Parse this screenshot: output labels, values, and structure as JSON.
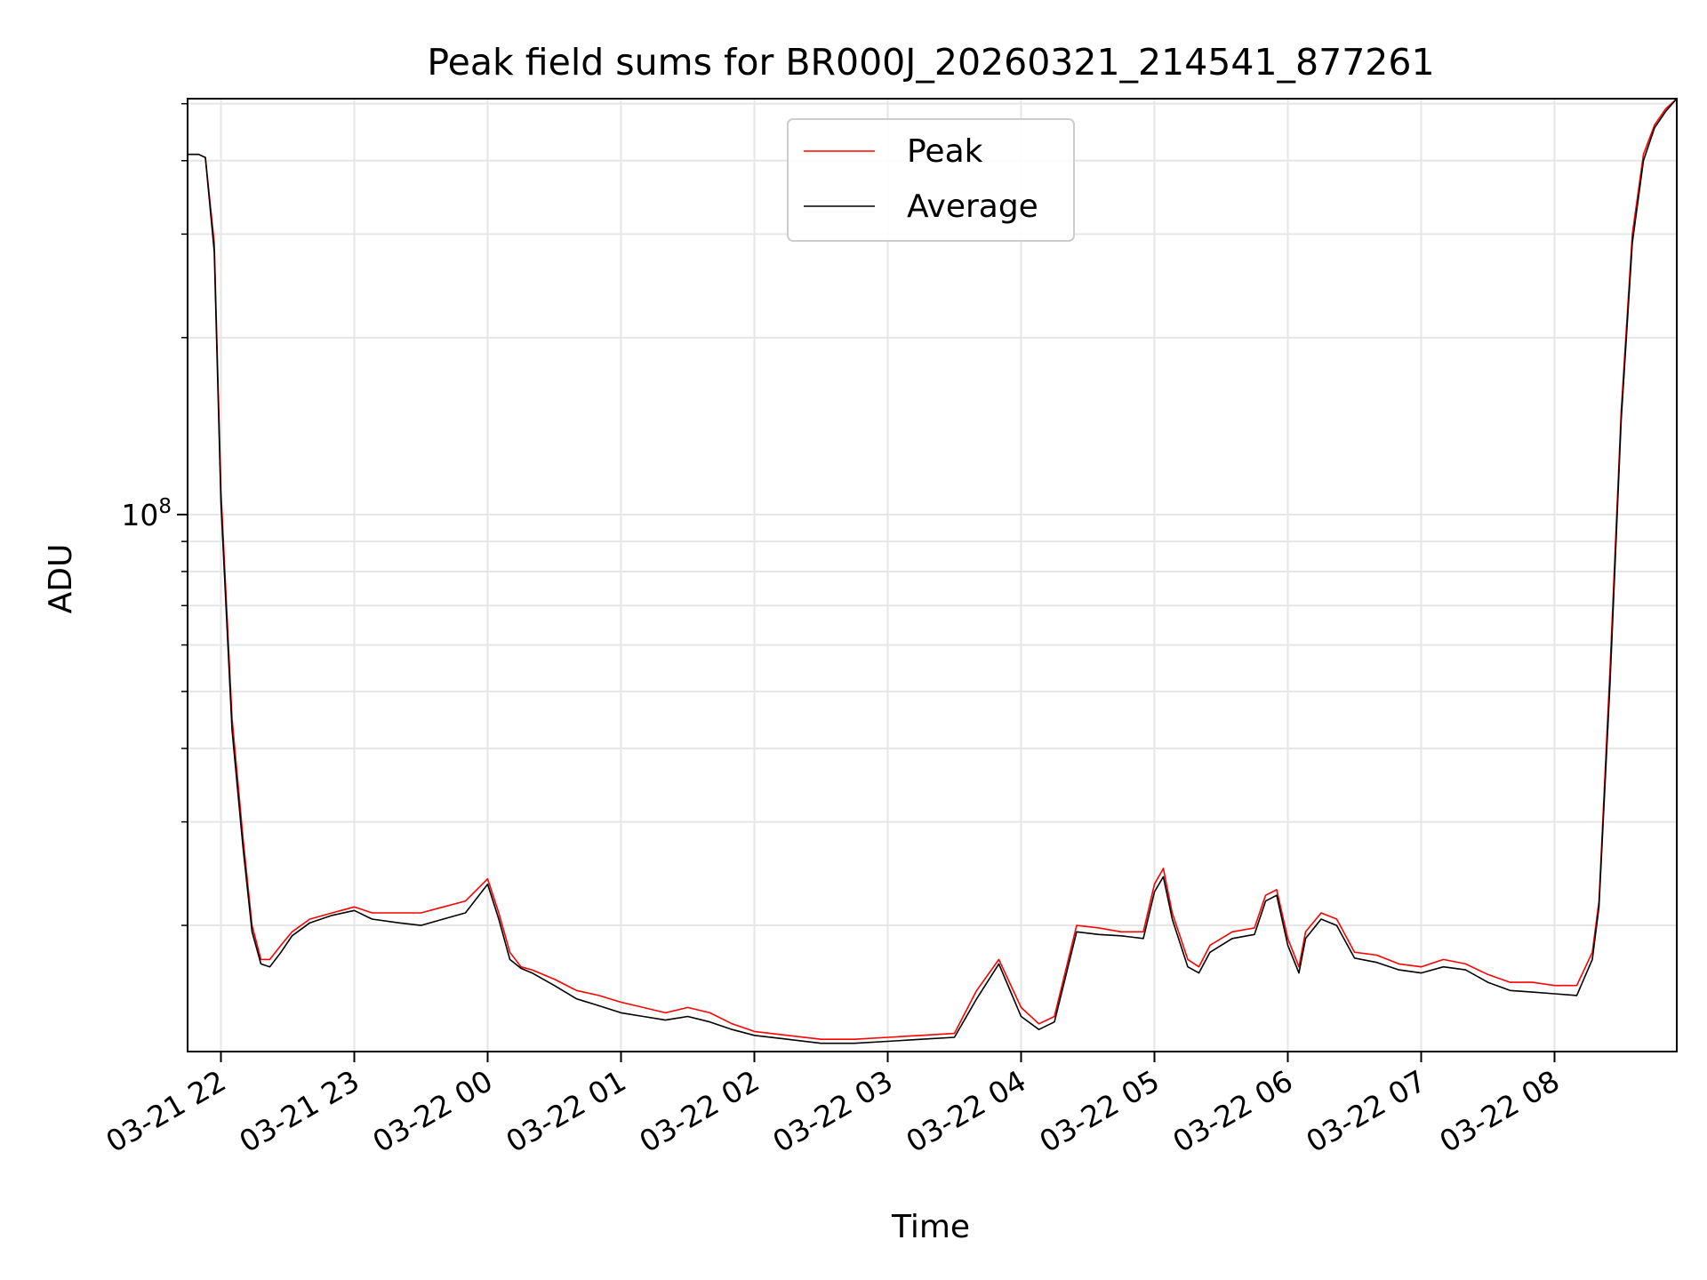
{
  "chart_data": {
    "type": "line",
    "title": "Peak field sums for BR000J_20260321_214541_877261",
    "xlabel": "Time",
    "ylabel": "ADU",
    "y_scale": "log",
    "xlim": [
      "2026-03-21 21:45",
      "2026-03-22 08:55"
    ],
    "ylim": [
      12200000,
      510000000
    ],
    "x_ticks": [
      "03-21 22",
      "03-21 23",
      "03-22 00",
      "03-22 01",
      "03-22 02",
      "03-22 03",
      "03-22 04",
      "03-22 05",
      "03-22 06",
      "03-22 07",
      "03-22 08"
    ],
    "y_ticks": [
      {
        "value": 100000000,
        "base": "10",
        "exp": "8"
      }
    ],
    "grid": true,
    "legend_position": "top-center",
    "series": [
      {
        "name": "Peak",
        "color": "#ff0000",
        "x": [
          "2026-03-21 21:45",
          "2026-03-21 21:50",
          "2026-03-21 21:53",
          "2026-03-21 21:57",
          "2026-03-21 22:00",
          "2026-03-21 22:05",
          "2026-03-21 22:10",
          "2026-03-21 22:14",
          "2026-03-21 22:18",
          "2026-03-21 22:22",
          "2026-03-21 22:27",
          "2026-03-21 22:32",
          "2026-03-21 22:40",
          "2026-03-21 22:50",
          "2026-03-21 23:00",
          "2026-03-21 23:08",
          "2026-03-21 23:20",
          "2026-03-21 23:30",
          "2026-03-21 23:40",
          "2026-03-21 23:50",
          "2026-03-22 00:00",
          "2026-03-22 00:05",
          "2026-03-22 00:10",
          "2026-03-22 00:15",
          "2026-03-22 00:20",
          "2026-03-22 00:30",
          "2026-03-22 00:40",
          "2026-03-22 00:50",
          "2026-03-22 01:00",
          "2026-03-22 01:10",
          "2026-03-22 01:20",
          "2026-03-22 01:30",
          "2026-03-22 01:40",
          "2026-03-22 01:50",
          "2026-03-22 02:00",
          "2026-03-22 02:15",
          "2026-03-22 02:30",
          "2026-03-22 02:45",
          "2026-03-22 03:00",
          "2026-03-22 03:15",
          "2026-03-22 03:30",
          "2026-03-22 03:40",
          "2026-03-22 03:50",
          "2026-03-22 04:00",
          "2026-03-22 04:08",
          "2026-03-22 04:15",
          "2026-03-22 04:25",
          "2026-03-22 04:35",
          "2026-03-22 04:45",
          "2026-03-22 04:55",
          "2026-03-22 05:00",
          "2026-03-22 05:04",
          "2026-03-22 05:08",
          "2026-03-22 05:15",
          "2026-03-22 05:20",
          "2026-03-22 05:25",
          "2026-03-22 05:35",
          "2026-03-22 05:45",
          "2026-03-22 05:50",
          "2026-03-22 05:55",
          "2026-03-22 06:00",
          "2026-03-22 06:05",
          "2026-03-22 06:08",
          "2026-03-22 06:15",
          "2026-03-22 06:22",
          "2026-03-22 06:30",
          "2026-03-22 06:40",
          "2026-03-22 06:50",
          "2026-03-22 07:00",
          "2026-03-22 07:10",
          "2026-03-22 07:20",
          "2026-03-22 07:30",
          "2026-03-22 07:40",
          "2026-03-22 07:50",
          "2026-03-22 08:00",
          "2026-03-22 08:10",
          "2026-03-22 08:17",
          "2026-03-22 08:20",
          "2026-03-22 08:25",
          "2026-03-22 08:30",
          "2026-03-22 08:35",
          "2026-03-22 08:40",
          "2026-03-22 08:45",
          "2026-03-22 08:50",
          "2026-03-22 08:55"
        ],
        "values": [
          410000000,
          410000000,
          405000000,
          290000000,
          110000000,
          45000000,
          28000000,
          20000000,
          17500000,
          17500000,
          18500000,
          19500000,
          20500000,
          21000000,
          21500000,
          21000000,
          21000000,
          21000000,
          21500000,
          22000000,
          24000000,
          21000000,
          18000000,
          17000000,
          16800000,
          16200000,
          15500000,
          15200000,
          14800000,
          14500000,
          14200000,
          14500000,
          14200000,
          13600000,
          13200000,
          13000000,
          12800000,
          12800000,
          12900000,
          13000000,
          13100000,
          15500000,
          17500000,
          14500000,
          13600000,
          14000000,
          20000000,
          19800000,
          19500000,
          19500000,
          23500000,
          25000000,
          21000000,
          17500000,
          17000000,
          18500000,
          19500000,
          19800000,
          22500000,
          23000000,
          19000000,
          17000000,
          19500000,
          21000000,
          20500000,
          18000000,
          17800000,
          17200000,
          17000000,
          17500000,
          17200000,
          16500000,
          16000000,
          16000000,
          15800000,
          15800000,
          18000000,
          22000000,
          55000000,
          150000000,
          300000000,
          410000000,
          460000000,
          490000000,
          510000000
        ]
      },
      {
        "name": "Average",
        "color": "#000000",
        "x": [
          "2026-03-21 21:45",
          "2026-03-21 21:50",
          "2026-03-21 21:53",
          "2026-03-21 21:57",
          "2026-03-21 22:00",
          "2026-03-21 22:05",
          "2026-03-21 22:10",
          "2026-03-21 22:14",
          "2026-03-21 22:18",
          "2026-03-21 22:22",
          "2026-03-21 22:27",
          "2026-03-21 22:32",
          "2026-03-21 22:40",
          "2026-03-21 22:50",
          "2026-03-21 23:00",
          "2026-03-21 23:08",
          "2026-03-21 23:20",
          "2026-03-21 23:30",
          "2026-03-21 23:40",
          "2026-03-21 23:50",
          "2026-03-22 00:00",
          "2026-03-22 00:05",
          "2026-03-22 00:10",
          "2026-03-22 00:15",
          "2026-03-22 00:20",
          "2026-03-22 00:30",
          "2026-03-22 00:40",
          "2026-03-22 00:50",
          "2026-03-22 01:00",
          "2026-03-22 01:10",
          "2026-03-22 01:20",
          "2026-03-22 01:30",
          "2026-03-22 01:40",
          "2026-03-22 01:50",
          "2026-03-22 02:00",
          "2026-03-22 02:15",
          "2026-03-22 02:30",
          "2026-03-22 02:45",
          "2026-03-22 03:00",
          "2026-03-22 03:15",
          "2026-03-22 03:30",
          "2026-03-22 03:40",
          "2026-03-22 03:50",
          "2026-03-22 04:00",
          "2026-03-22 04:08",
          "2026-03-22 04:15",
          "2026-03-22 04:25",
          "2026-03-22 04:35",
          "2026-03-22 04:45",
          "2026-03-22 04:55",
          "2026-03-22 05:00",
          "2026-03-22 05:04",
          "2026-03-22 05:08",
          "2026-03-22 05:15",
          "2026-03-22 05:20",
          "2026-03-22 05:25",
          "2026-03-22 05:35",
          "2026-03-22 05:45",
          "2026-03-22 05:50",
          "2026-03-22 05:55",
          "2026-03-22 06:00",
          "2026-03-22 06:05",
          "2026-03-22 06:08",
          "2026-03-22 06:15",
          "2026-03-22 06:22",
          "2026-03-22 06:30",
          "2026-03-22 06:40",
          "2026-03-22 06:50",
          "2026-03-22 07:00",
          "2026-03-22 07:10",
          "2026-03-22 07:20",
          "2026-03-22 07:30",
          "2026-03-22 07:40",
          "2026-03-22 07:50",
          "2026-03-22 08:00",
          "2026-03-22 08:10",
          "2026-03-22 08:17",
          "2026-03-22 08:20",
          "2026-03-22 08:25",
          "2026-03-22 08:30",
          "2026-03-22 08:35",
          "2026-03-22 08:40",
          "2026-03-22 08:45",
          "2026-03-22 08:50",
          "2026-03-22 08:55"
        ],
        "values": [
          410000000,
          410000000,
          405000000,
          280000000,
          105000000,
          43000000,
          27000000,
          19500000,
          17200000,
          17000000,
          18000000,
          19200000,
          20200000,
          20800000,
          21200000,
          20500000,
          20200000,
          20000000,
          20500000,
          21000000,
          23500000,
          20500000,
          17500000,
          16900000,
          16600000,
          15800000,
          15000000,
          14600000,
          14200000,
          14000000,
          13800000,
          14000000,
          13700000,
          13300000,
          13000000,
          12800000,
          12600000,
          12600000,
          12700000,
          12800000,
          12900000,
          15000000,
          17200000,
          14000000,
          13300000,
          13700000,
          19500000,
          19300000,
          19200000,
          19000000,
          22800000,
          24200000,
          20500000,
          17000000,
          16600000,
          18000000,
          19000000,
          19300000,
          22000000,
          22500000,
          18500000,
          16600000,
          19000000,
          20500000,
          20000000,
          17600000,
          17300000,
          16800000,
          16600000,
          17000000,
          16800000,
          16000000,
          15500000,
          15400000,
          15300000,
          15200000,
          17500000,
          21500000,
          52000000,
          145000000,
          290000000,
          400000000,
          455000000,
          485000000,
          510000000
        ]
      }
    ]
  }
}
